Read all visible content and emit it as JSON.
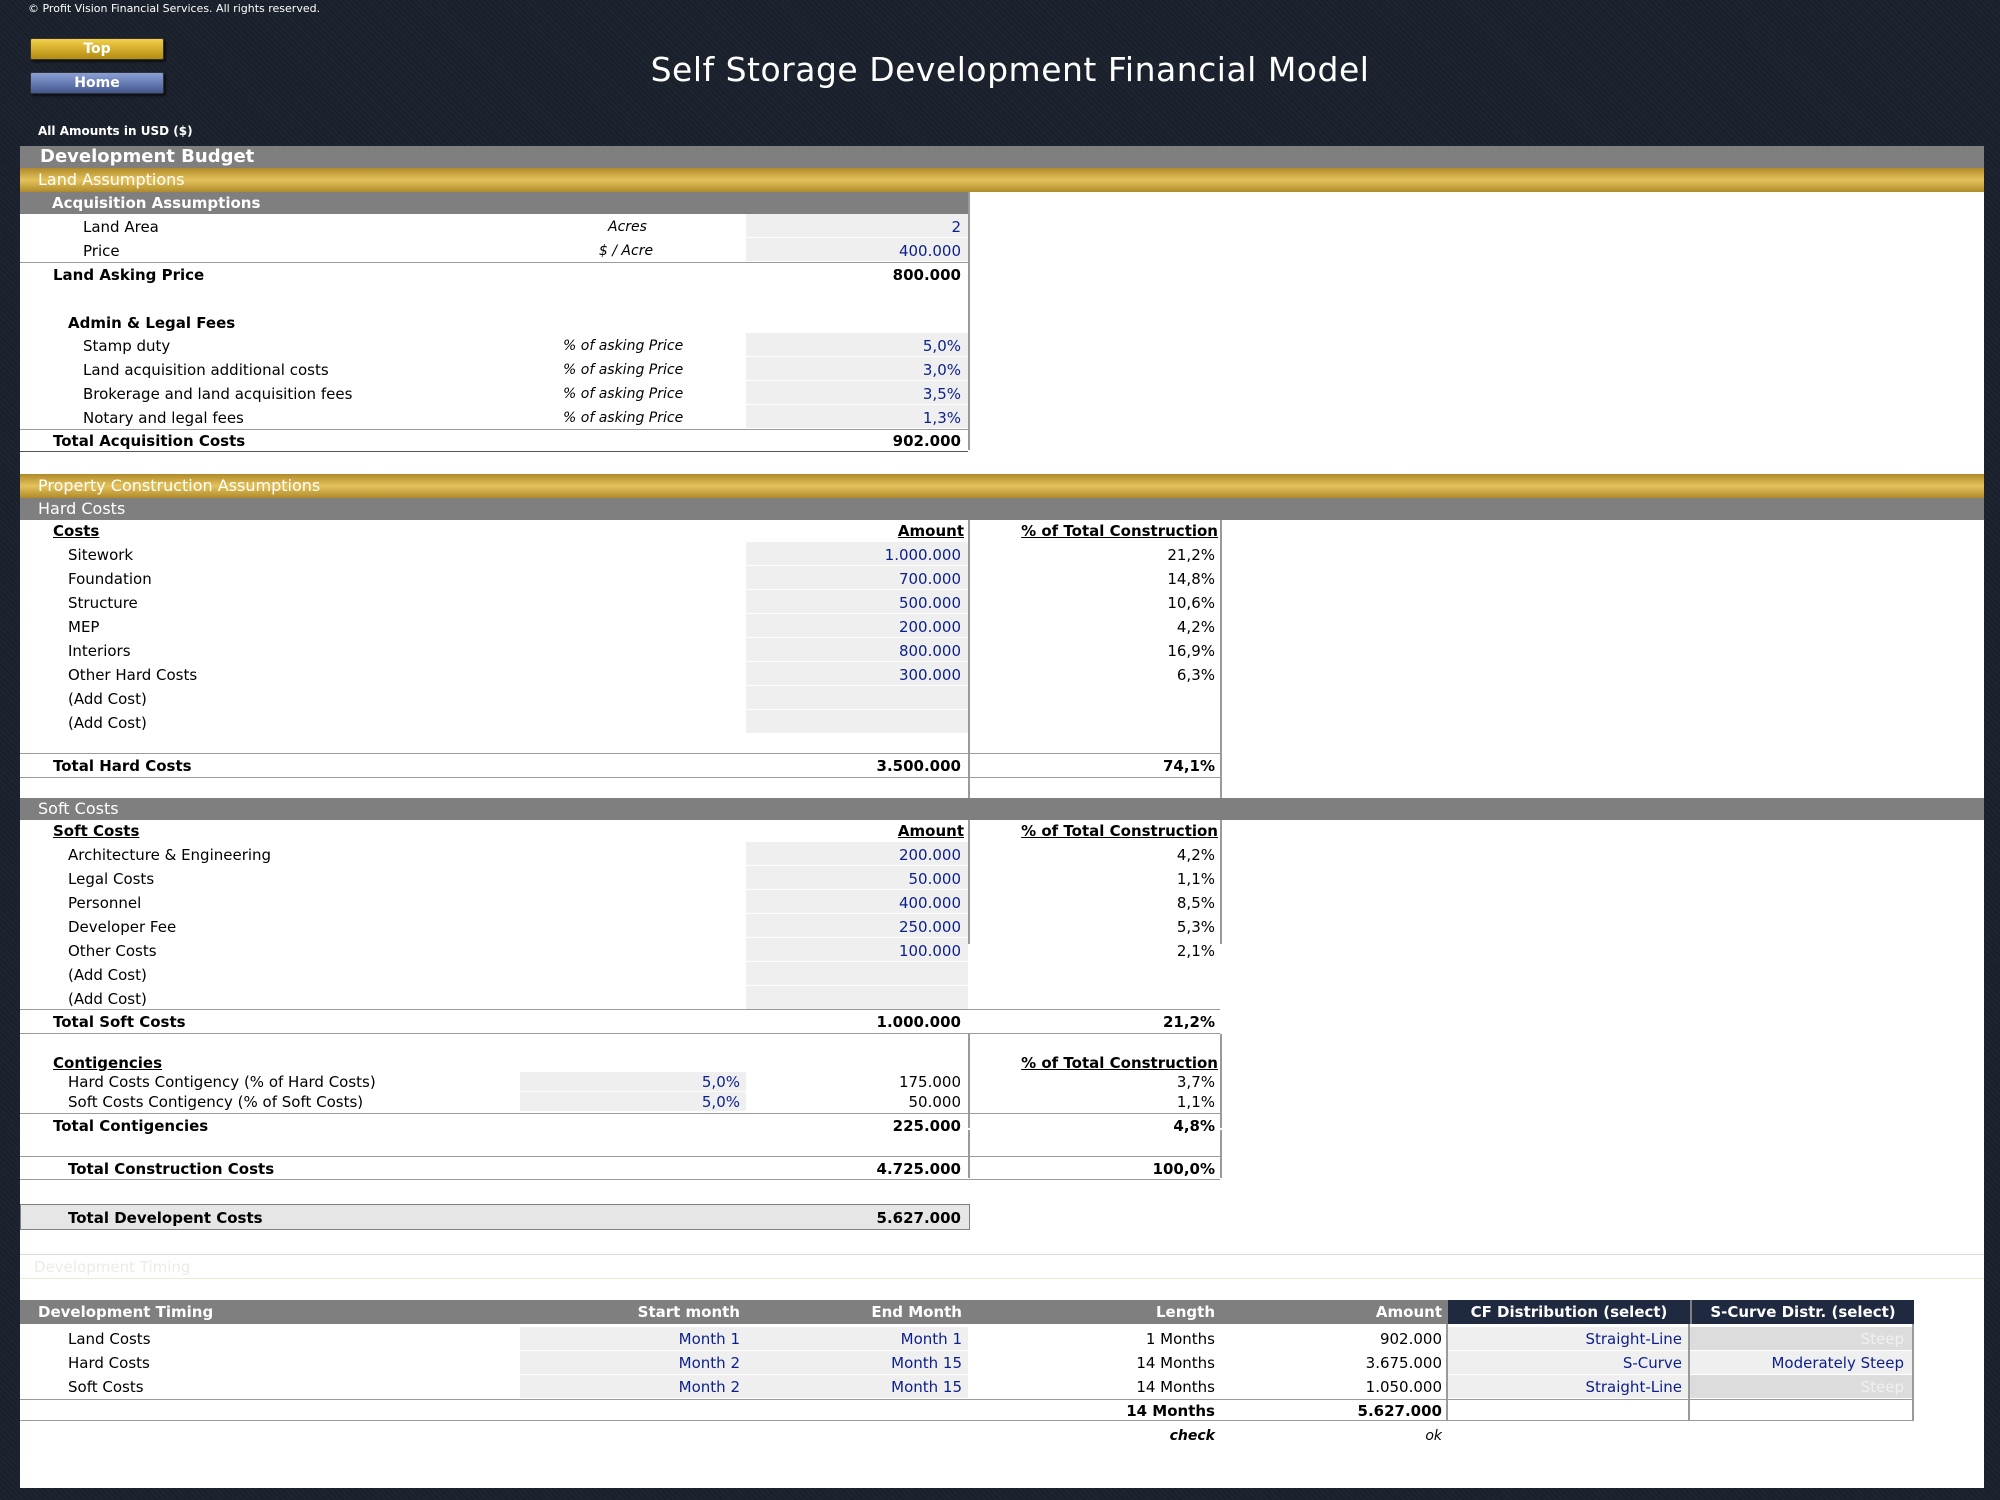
{
  "header": {
    "copyright": "© Profit Vision Financial Services. All rights reserved.",
    "top_button": "Top",
    "home_button": "Home",
    "title": "Self Storage Development Financial Model",
    "amounts_note": "All Amounts in  USD ($)"
  },
  "development_budget": {
    "title": "Development Budget"
  },
  "land": {
    "section_title": "Land Assumptions",
    "acq_title": "Acquisition Assumptions",
    "area_label": "Land Area",
    "area_unit": "Acres",
    "area_value": "2",
    "price_label": "Price",
    "price_unit": "$ / Acre",
    "price_value": "400.000",
    "asking_label": "Land Asking Price",
    "asking_value": "800.000",
    "fees_title": "Admin & Legal Fees",
    "fees": [
      {
        "label": "Stamp duty",
        "unit": "% of asking Price",
        "value": "5,0%"
      },
      {
        "label": "Land acquisition additional costs",
        "unit": "% of asking Price",
        "value": "3,0%"
      },
      {
        "label": "Brokerage and land acquisition fees",
        "unit": "% of asking Price",
        "value": "3,5%"
      },
      {
        "label": "Notary and legal fees",
        "unit": "% of asking Price",
        "value": "1,3%"
      }
    ],
    "total_label": "Total Acquisition Costs",
    "total_value": "902.000"
  },
  "construction": {
    "section_title": "Property Construction Assumptions"
  },
  "hard_costs": {
    "band_title": "Hard Costs",
    "col_label": "Costs",
    "col_amount": "Amount",
    "col_pct": "% of Total Construction",
    "rows": [
      {
        "label": "Sitework",
        "amount": "1.000.000",
        "pct": "21,2%"
      },
      {
        "label": "Foundation",
        "amount": "700.000",
        "pct": "14,8%"
      },
      {
        "label": "Structure",
        "amount": "500.000",
        "pct": "10,6%"
      },
      {
        "label": "MEP",
        "amount": "200.000",
        "pct": "4,2%"
      },
      {
        "label": "Interiors",
        "amount": "800.000",
        "pct": "16,9%"
      },
      {
        "label": "Other Hard Costs",
        "amount": "300.000",
        "pct": "6,3%"
      },
      {
        "label": "(Add Cost)",
        "amount": "",
        "pct": ""
      },
      {
        "label": "(Add Cost)",
        "amount": "",
        "pct": ""
      }
    ],
    "total_label": "Total Hard Costs",
    "total_amount": "3.500.000",
    "total_pct": "74,1%"
  },
  "soft_costs": {
    "band_title": "Soft Costs",
    "col_label": "Soft Costs",
    "col_amount": "Amount",
    "col_pct": "% of Total Construction",
    "rows": [
      {
        "label": "Architecture & Engineering",
        "amount": "200.000",
        "pct": "4,2%"
      },
      {
        "label": "Legal Costs",
        "amount": "50.000",
        "pct": "1,1%"
      },
      {
        "label": "Personnel",
        "amount": "400.000",
        "pct": "8,5%"
      },
      {
        "label": "Developer Fee",
        "amount": "250.000",
        "pct": "5,3%"
      },
      {
        "label": "Other Costs",
        "amount": "100.000",
        "pct": "2,1%"
      },
      {
        "label": "(Add Cost)",
        "amount": "",
        "pct": ""
      },
      {
        "label": "(Add Cost)",
        "amount": "",
        "pct": ""
      }
    ],
    "total_label": "Total Soft Costs",
    "total_amount": "1.000.000",
    "total_pct": "21,2%"
  },
  "contingencies": {
    "title": "Contigencies",
    "col_pct": "% of Total Construction",
    "rows": [
      {
        "label": "Hard Costs Contigency (% of Hard Costs)",
        "rate": "5,0%",
        "amount": "175.000",
        "pct": "3,7%"
      },
      {
        "label": "Soft Costs Contigency (% of Soft Costs)",
        "rate": "5,0%",
        "amount": "50.000",
        "pct": "1,1%"
      }
    ],
    "total_label": "Total Contigencies",
    "total_amount": "225.000",
    "total_pct": "4,8%"
  },
  "totals": {
    "construction_label": "Total Construction Costs",
    "construction_amount": "4.725.000",
    "construction_pct": "100,0%",
    "development_label": "Total Developent Costs",
    "development_amount": "5.627.000"
  },
  "timing": {
    "faded_note": "Development Timing",
    "headers": {
      "label": "Development Timing",
      "start": "Start month",
      "end": "End Month",
      "length": "Length",
      "amount": "Amount",
      "cf": "CF Distribution (select)",
      "scurve": "S-Curve Distr. (select)"
    },
    "rows": [
      {
        "label": "Land Costs",
        "start": "Month 1",
        "end": "Month 1",
        "length": "1 Months",
        "amount": "902.000",
        "cf": "Straight-Line",
        "scurve": "Steep"
      },
      {
        "label": "Hard Costs",
        "start": "Month 2",
        "end": "Month 15",
        "length": "14 Months",
        "amount": "3.675.000",
        "cf": "S-Curve",
        "scurve": "Moderately Steep"
      },
      {
        "label": "Soft Costs",
        "start": "Month 2",
        "end": "Month 15",
        "length": "14 Months",
        "amount": "1.050.000",
        "cf": "Straight-Line",
        "scurve": "Steep"
      }
    ],
    "total_length": "14 Months",
    "total_amount": "5.627.000",
    "check_label": "check",
    "check_value": "ok"
  },
  "colors": {
    "gold": "#d4af37",
    "gray_band": "#7f7f7f",
    "input_fill": "#efefef",
    "input_blue": "#0b1f8a",
    "header_dark": "#1f2940"
  }
}
